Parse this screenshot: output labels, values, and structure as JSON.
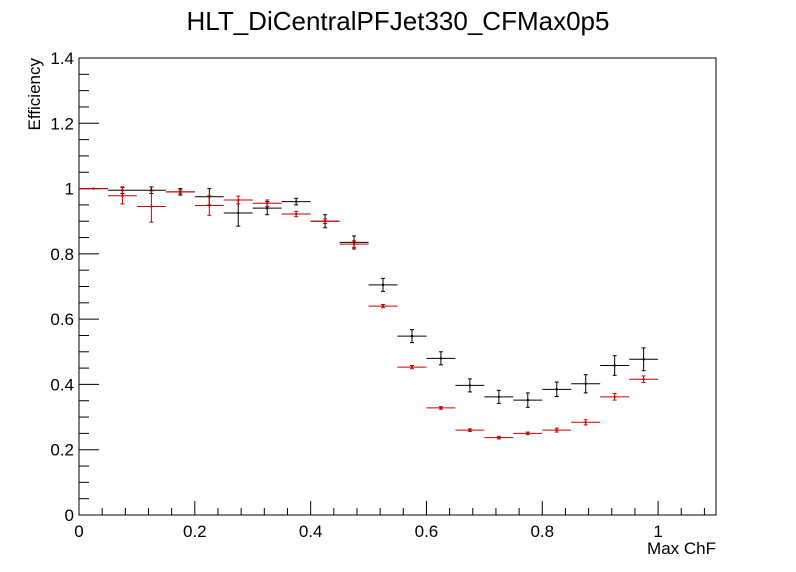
{
  "chart_data": {
    "type": "scatter",
    "title": "HLT_DiCentralPFJet330_CFMax0p5",
    "xlabel": "Max ChF",
    "ylabel": "Efficiency",
    "xlim": [
      0,
      1.1
    ],
    "ylim": [
      0,
      1.4
    ],
    "x_ticks": [
      "0",
      "0.2",
      "0.4",
      "0.6",
      "0.8",
      "1"
    ],
    "y_ticks": [
      "0",
      "0.2",
      "0.4",
      "0.6",
      "0.8",
      "1",
      "1.2",
      "1.4"
    ],
    "x_tick_values": [
      0,
      0.2,
      0.4,
      0.6,
      0.8,
      1.0
    ],
    "y_tick_values": [
      0,
      0.2,
      0.4,
      0.6,
      0.8,
      1.0,
      1.2,
      1.4
    ],
    "grid": false,
    "bin_half_width": 0.025,
    "series": [
      {
        "color": "#000000",
        "points": [
          {
            "x": 0.025,
            "y": 1.0,
            "err": 0.0
          },
          {
            "x": 0.075,
            "y": 0.995,
            "err": 0.01
          },
          {
            "x": 0.125,
            "y": 0.995,
            "err": 0.01
          },
          {
            "x": 0.175,
            "y": 0.99,
            "err": 0.01
          },
          {
            "x": 0.225,
            "y": 0.975,
            "err": 0.025
          },
          {
            "x": 0.275,
            "y": 0.925,
            "err": 0.04
          },
          {
            "x": 0.325,
            "y": 0.94,
            "err": 0.02
          },
          {
            "x": 0.375,
            "y": 0.96,
            "err": 0.01
          },
          {
            "x": 0.425,
            "y": 0.9,
            "err": 0.02
          },
          {
            "x": 0.475,
            "y": 0.835,
            "err": 0.02
          },
          {
            "x": 0.525,
            "y": 0.705,
            "err": 0.02
          },
          {
            "x": 0.575,
            "y": 0.548,
            "err": 0.02
          },
          {
            "x": 0.625,
            "y": 0.48,
            "err": 0.02
          },
          {
            "x": 0.675,
            "y": 0.397,
            "err": 0.02
          },
          {
            "x": 0.725,
            "y": 0.362,
            "err": 0.02
          },
          {
            "x": 0.775,
            "y": 0.352,
            "err": 0.022
          },
          {
            "x": 0.825,
            "y": 0.385,
            "err": 0.022
          },
          {
            "x": 0.875,
            "y": 0.402,
            "err": 0.028
          },
          {
            "x": 0.925,
            "y": 0.458,
            "err": 0.03
          },
          {
            "x": 0.975,
            "y": 0.477,
            "err": 0.035
          }
        ]
      },
      {
        "color": "#cc0000",
        "points": [
          {
            "x": 0.025,
            "y": 1.0,
            "err": 0.0
          },
          {
            "x": 0.075,
            "y": 0.978,
            "err": 0.025
          },
          {
            "x": 0.125,
            "y": 0.945,
            "err": 0.048
          },
          {
            "x": 0.175,
            "y": 0.99,
            "err": 0.006
          },
          {
            "x": 0.225,
            "y": 0.948,
            "err": 0.03
          },
          {
            "x": 0.275,
            "y": 0.965,
            "err": 0.012
          },
          {
            "x": 0.325,
            "y": 0.955,
            "err": 0.01
          },
          {
            "x": 0.375,
            "y": 0.922,
            "err": 0.008
          },
          {
            "x": 0.425,
            "y": 0.9,
            "err": 0.007
          },
          {
            "x": 0.475,
            "y": 0.83,
            "err": 0.01
          },
          {
            "x": 0.525,
            "y": 0.64,
            "err": 0.005
          },
          {
            "x": 0.575,
            "y": 0.453,
            "err": 0.005
          },
          {
            "x": 0.625,
            "y": 0.328,
            "err": 0.004
          },
          {
            "x": 0.675,
            "y": 0.26,
            "err": 0.004
          },
          {
            "x": 0.725,
            "y": 0.237,
            "err": 0.004
          },
          {
            "x": 0.775,
            "y": 0.25,
            "err": 0.004
          },
          {
            "x": 0.825,
            "y": 0.26,
            "err": 0.006
          },
          {
            "x": 0.875,
            "y": 0.284,
            "err": 0.008
          },
          {
            "x": 0.925,
            "y": 0.362,
            "err": 0.01
          },
          {
            "x": 0.975,
            "y": 0.416,
            "err": 0.01
          }
        ]
      }
    ]
  }
}
